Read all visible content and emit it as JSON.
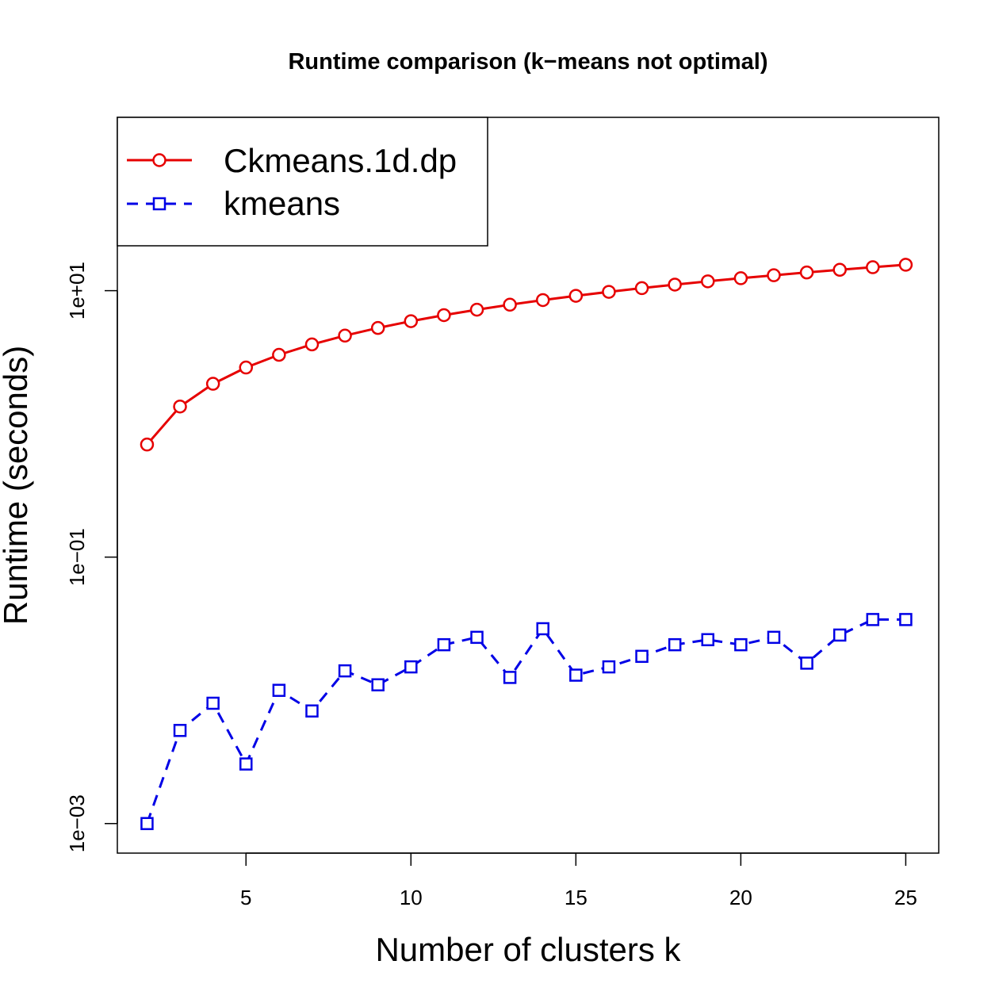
{
  "chart_data": {
    "type": "line",
    "title": "Runtime comparison (k−means not optimal)",
    "xlabel": "Number of clusters k",
    "ylabel": "Runtime (seconds)",
    "y_scale": "log10",
    "xlim": [
      1.1,
      26.0
    ],
    "ylim": [
      0.0006,
      200
    ],
    "x_ticks": [
      5,
      10,
      15,
      20,
      25
    ],
    "x_tick_labels": [
      "5",
      "10",
      "15",
      "20",
      "25"
    ],
    "y_ticks": [
      0.001,
      0.1,
      10
    ],
    "y_tick_labels": [
      "1e−03",
      "1e−01",
      "1e+01"
    ],
    "grid": false,
    "legend_position": "top-left",
    "x": [
      2,
      3,
      4,
      5,
      6,
      7,
      8,
      9,
      10,
      11,
      12,
      13,
      14,
      15,
      16,
      17,
      18,
      19,
      20,
      21,
      22,
      23,
      24,
      25
    ],
    "series": [
      {
        "name": "Ckmeans.1d.dp",
        "color": "#e60000",
        "line_style": "solid",
        "marker": "circle",
        "values": [
          0.7,
          1.35,
          2.0,
          2.65,
          3.3,
          3.95,
          4.6,
          5.25,
          5.9,
          6.55,
          7.2,
          7.85,
          8.5,
          9.15,
          9.8,
          10.45,
          11.1,
          11.75,
          12.4,
          13.05,
          13.7,
          14.35,
          15.0,
          15.65
        ]
      },
      {
        "name": "kmeans",
        "color": "#0000e6",
        "line_style": "dashed",
        "marker": "square",
        "values": [
          0.001,
          0.005,
          0.008,
          0.0028,
          0.01,
          0.007,
          0.014,
          0.011,
          0.015,
          0.022,
          0.025,
          0.0125,
          0.029,
          0.013,
          0.015,
          0.018,
          0.022,
          0.024,
          0.022,
          0.025,
          0.016,
          0.026,
          0.034,
          0.034
        ]
      }
    ]
  }
}
